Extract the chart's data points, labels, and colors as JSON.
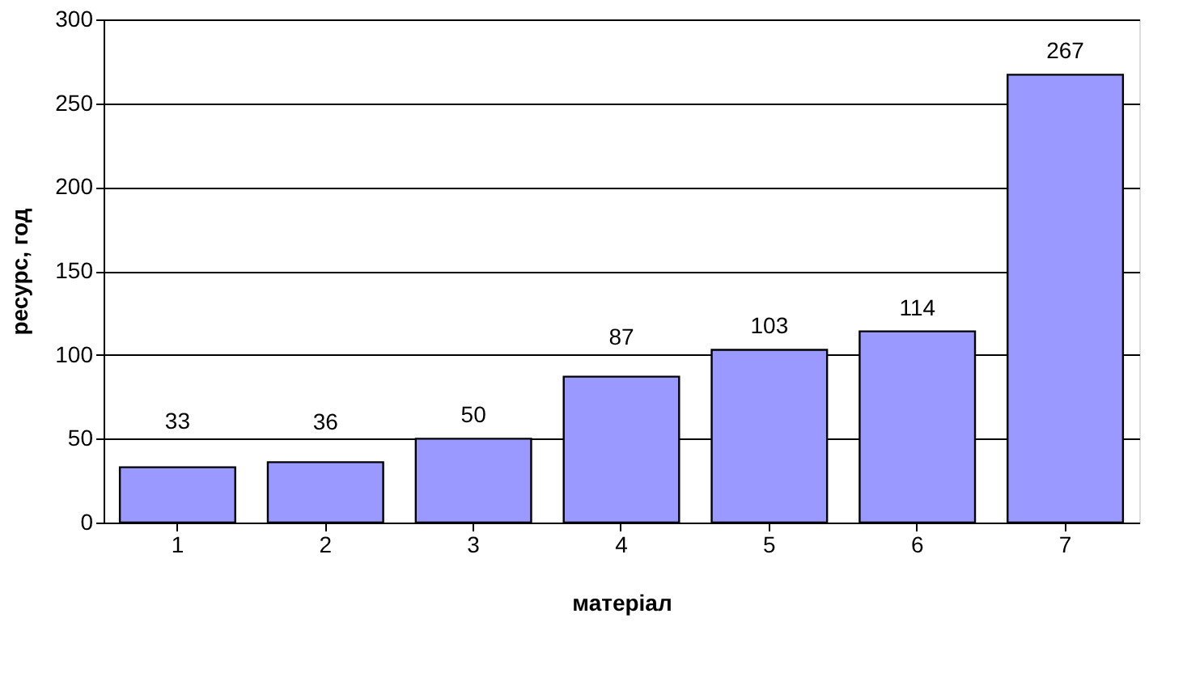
{
  "chart_data": {
    "type": "bar",
    "xlabel": "матеріал",
    "ylabel": "ресурс, год",
    "categories": [
      "1",
      "2",
      "3",
      "4",
      "5",
      "6",
      "7"
    ],
    "values": [
      33,
      36,
      50,
      87,
      103,
      114,
      267
    ],
    "color": "#9999ff",
    "ylim": [
      0,
      300
    ],
    "yticks": [
      0,
      50,
      100,
      150,
      200,
      250,
      300
    ],
    "grid": "y",
    "data_labels": true
  }
}
